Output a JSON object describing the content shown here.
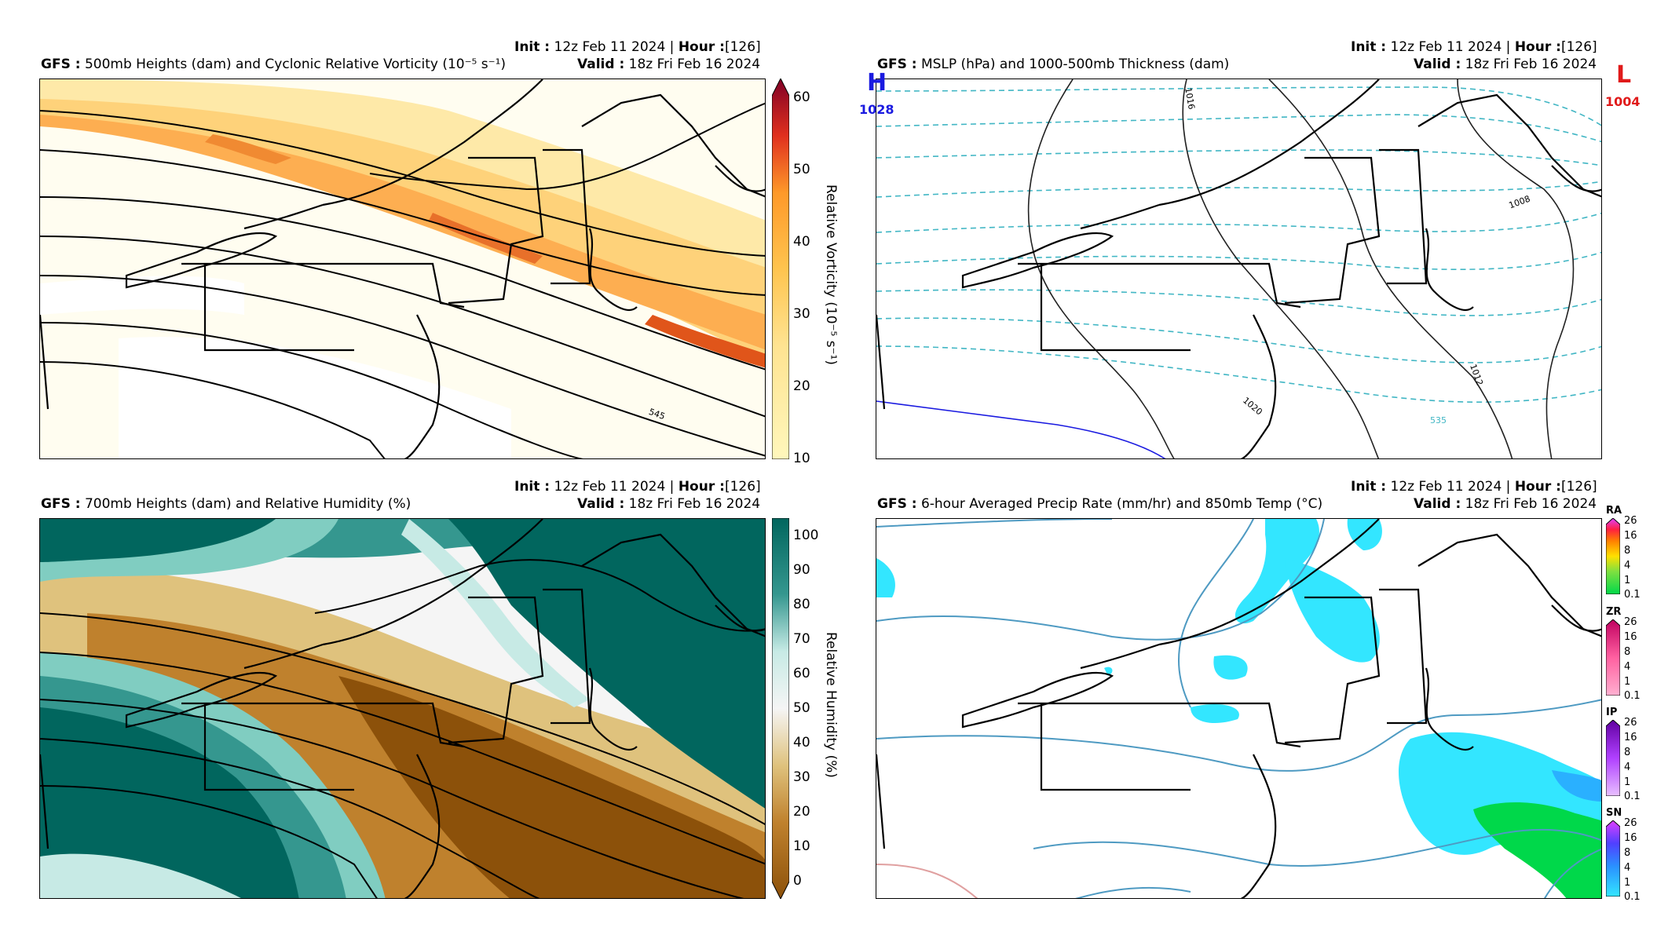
{
  "header": {
    "init_label": "Init :",
    "init_value": "12z Feb 11 2024 | ",
    "hour_label": "Hour :",
    "hour_value": "[126]",
    "valid_label": "Valid :",
    "valid_value": "18z Fri Feb 16 2024",
    "model_label": "GFS :"
  },
  "panels": {
    "p1": {
      "title": "500mb Heights (dam) and Cyclonic Relative Vorticity (10⁻⁵ s⁻¹)",
      "colorbar_label": "Relative Vorticity (10⁻⁵ s⁻¹)",
      "ticks": [
        "60",
        "50",
        "40",
        "30",
        "20",
        "10"
      ],
      "contour_label": "545"
    },
    "p2": {
      "title": "MSLP (hPa) and 1000-500mb Thickness (dam)",
      "high_letter": "H",
      "high_value": "1028",
      "low_letter": "L",
      "low_value": "1004",
      "isobar_labels": [
        "1016",
        "1012",
        "1008",
        "1020"
      ],
      "thickness_label": "535"
    },
    "p3": {
      "title": "700mb Heights (dam) and Relative Humidity (%)",
      "colorbar_label": "Relative Humidity (%)",
      "ticks": [
        "100",
        "90",
        "80",
        "70",
        "60",
        "50",
        "40",
        "30",
        "20",
        "10",
        "0"
      ]
    },
    "p4": {
      "title": "6-hour Averaged Precip Rate (mm/hr) and 850mb Temp (°C)",
      "ptypes": [
        {
          "name": "RA",
          "ticks": [
            "26",
            "16",
            "8",
            "4",
            "1",
            "0.1"
          ]
        },
        {
          "name": "ZR",
          "ticks": [
            "26",
            "16",
            "8",
            "4",
            "1",
            "0.1"
          ]
        },
        {
          "name": "IP",
          "ticks": [
            "26",
            "16",
            "8",
            "4",
            "1",
            "0.1"
          ]
        },
        {
          "name": "SN",
          "ticks": [
            "26",
            "16",
            "8",
            "4",
            "1",
            "0.1"
          ]
        }
      ]
    }
  },
  "colors": {
    "vort": [
      "#fff7bc",
      "#fee391",
      "#fec44f",
      "#fe9929",
      "#ec7014",
      "#cc4c02",
      "#8c2d04"
    ],
    "rh_dry": "#8c510a",
    "rh_wet": "#01665e",
    "thickness": "#41b6c4",
    "temp": "#4e9ac2",
    "snow": "#33e6ff",
    "rain": "#00d84a"
  }
}
